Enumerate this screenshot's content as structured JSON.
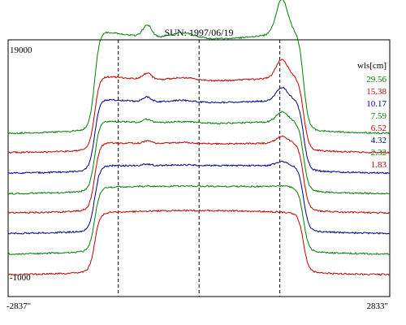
{
  "chart_data": {
    "type": "line",
    "title": "SUN: 1997/06/19",
    "x_tick_labels": [
      "-2837\"",
      "2833\""
    ],
    "y_tick_labels": [
      "19000",
      "-1000"
    ],
    "xlim": [
      -2837,
      2833
    ],
    "ylim": [
      -1000,
      19000
    ],
    "vertical_markers": [
      -1200,
      0,
      1200
    ],
    "legend_title": "wls[cm]",
    "legend_position": "top-right",
    "colors": {
      "green": "#008000",
      "red": "#c00000",
      "blue": "#00008b"
    },
    "series": [
      {
        "name": "29.56",
        "color": "#008000",
        "baseline": 11700,
        "limb": 0.1,
        "bump": 0.8,
        "rise": 7350
      },
      {
        "name": "15.38",
        "color": "#c00000",
        "baseline": 10200,
        "limb": 0.08,
        "bump": 0.55,
        "rise": 5600
      },
      {
        "name": "10.17",
        "color": "#00008b",
        "baseline": 8600,
        "limb": 0.06,
        "bump": 0.4,
        "rise": 5500
      },
      {
        "name": "7.59",
        "color": "#008000",
        "baseline": 7000,
        "limb": 0.04,
        "bump": 0.3,
        "rise": 5500
      },
      {
        "name": "6.52",
        "color": "#c00000",
        "baseline": 5500,
        "limb": 0.02,
        "bump": 0.22,
        "rise": 5400
      },
      {
        "name": "4.32",
        "color": "#00008b",
        "baseline": 3900,
        "limb": 0.0,
        "bump": 0.14,
        "rise": 5300
      },
      {
        "name": "2.32",
        "color": "#008000",
        "baseline": 2300,
        "limb": -0.02,
        "bump": 0.04,
        "rise": 5300
      },
      {
        "name": "1.83",
        "color": "#c00000",
        "baseline": 700,
        "limb": -0.04,
        "bump": 0.0,
        "rise": 5000
      }
    ]
  }
}
